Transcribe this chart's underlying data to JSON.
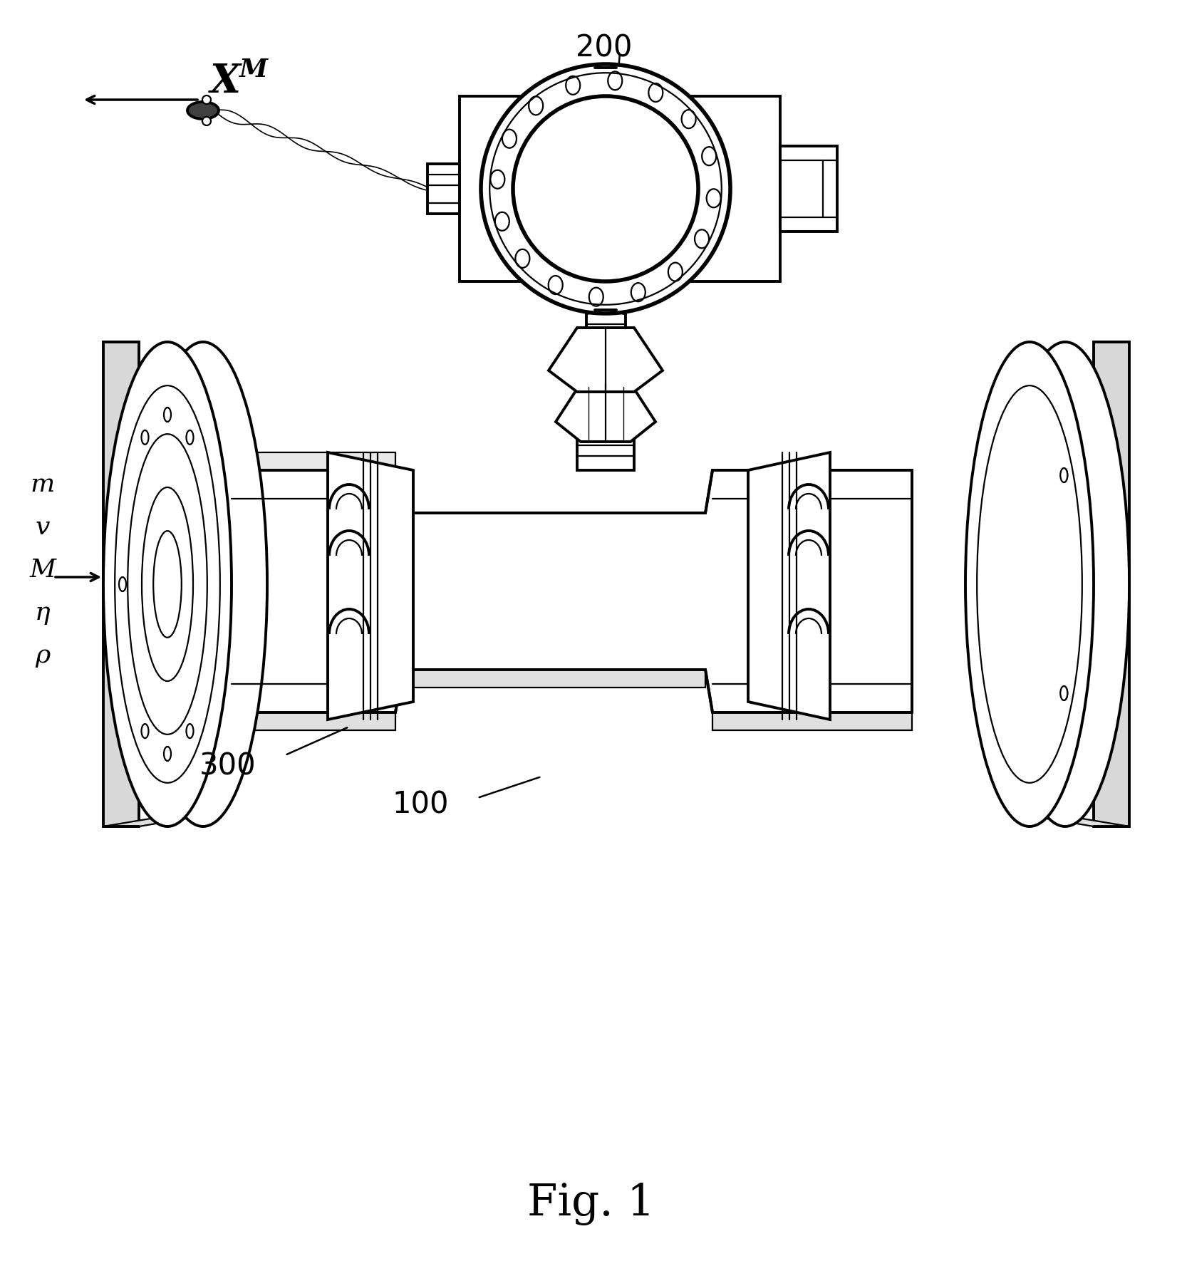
{
  "bg_color": "#ffffff",
  "line_color": "#000000",
  "fig_label": "Fig. 1",
  "label_100": "100",
  "label_200": "200",
  "label_300": "300",
  "xm_label": "X",
  "xm_sub": "M",
  "flow_labels": [
    "m",
    "v",
    "M",
    "η",
    "ρ"
  ],
  "figsize": [
    16.59,
    17.84
  ],
  "dpi": 100,
  "lw_main": 2.8,
  "lw_thick": 4.0,
  "lw_thin": 1.6,
  "lw_ultra": 1.0
}
